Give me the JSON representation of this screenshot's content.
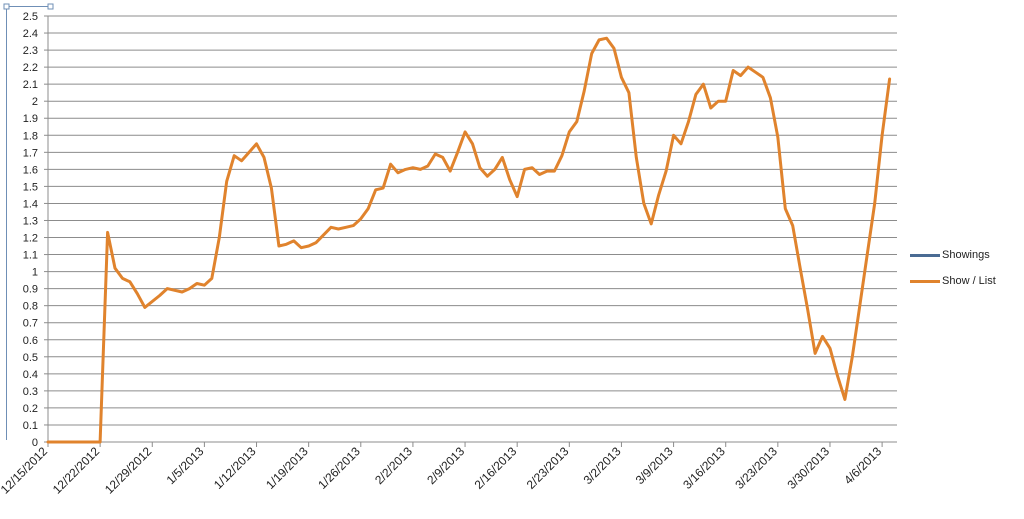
{
  "chart_data": {
    "type": "line",
    "title": "",
    "xlabel": "",
    "ylabel": "",
    "ylim": [
      0,
      2.5
    ],
    "y_ticks": [
      "0",
      "0.1",
      "0.2",
      "0.3",
      "0.4",
      "0.5",
      "0.6",
      "0.7",
      "0.8",
      "0.9",
      "1",
      "1.1",
      "1.2",
      "1.3",
      "1.4",
      "1.5",
      "1.6",
      "1.7",
      "1.8",
      "1.9",
      "2",
      "2.1",
      "2.2",
      "2.3",
      "2.4",
      "2.5"
    ],
    "x_tick_labels": [
      "12/15/2012",
      "12/22/2012",
      "12/29/2012",
      "1/5/2013",
      "1/12/2013",
      "1/19/2013",
      "1/26/2013",
      "2/2/2013",
      "2/9/2013",
      "2/16/2013",
      "2/23/2013",
      "3/2/2013",
      "3/9/2013",
      "3/16/2013",
      "3/23/2013",
      "3/30/2013",
      "4/6/2013"
    ],
    "x_range": [
      "12/15/2012",
      "4/8/2013"
    ],
    "grid": "horizontal",
    "legend_position": "right",
    "series": [
      {
        "name": "Showings",
        "color": "#4a6b93",
        "values": []
      },
      {
        "name": "Show / List",
        "color": "#e0832d",
        "x": [
          "12/15/2012",
          "12/22/2012",
          "12/23/2012",
          "12/24/2012",
          "12/25/2012",
          "12/26/2012",
          "12/27/2012",
          "12/28/2012",
          "12/30/2012",
          "12/31/2012",
          "1/2/2013",
          "1/3/2013",
          "1/4/2013",
          "1/5/2013",
          "1/6/2013",
          "1/7/2013",
          "1/8/2013",
          "1/9/2013",
          "1/10/2013",
          "1/11/2013",
          "1/12/2013",
          "1/13/2013",
          "1/14/2013",
          "1/15/2013",
          "1/16/2013",
          "1/17/2013",
          "1/18/2013",
          "1/19/2013",
          "1/20/2013",
          "1/22/2013",
          "1/23/2013",
          "1/24/2013",
          "1/25/2013",
          "1/26/2013",
          "1/27/2013",
          "1/28/2013",
          "1/29/2013",
          "1/30/2013",
          "1/31/2013",
          "2/1/2013",
          "2/2/2013",
          "2/3/2013",
          "2/4/2013",
          "2/5/2013",
          "2/6/2013",
          "2/7/2013",
          "2/8/2013",
          "2/9/2013",
          "2/10/2013",
          "2/11/2013",
          "2/12/2013",
          "2/13/2013",
          "2/14/2013",
          "2/15/2013",
          "2/16/2013",
          "2/17/2013",
          "2/18/2013",
          "2/19/2013",
          "2/20/2013",
          "2/21/2013",
          "2/22/2013",
          "2/23/2013",
          "2/24/2013",
          "2/25/2013",
          "2/26/2013",
          "2/27/2013",
          "2/28/2013",
          "3/1/2013",
          "3/2/2013",
          "3/3/2013",
          "3/4/2013",
          "3/5/2013",
          "3/6/2013",
          "3/7/2013",
          "3/8/2013",
          "3/9/2013",
          "3/10/2013",
          "3/11/2013",
          "3/12/2013",
          "3/13/2013",
          "3/14/2013",
          "3/15/2013",
          "3/16/2013",
          "3/17/2013",
          "3/18/2013",
          "3/19/2013",
          "3/20/2013",
          "3/21/2013",
          "3/22/2013",
          "3/23/2013",
          "3/24/2013",
          "3/25/2013",
          "3/26/2013",
          "3/27/2013",
          "3/28/2013",
          "3/29/2013",
          "3/30/2013",
          "3/31/2013",
          "4/1/2013",
          "4/2/2013",
          "4/3/2013",
          "4/4/2013",
          "4/5/2013",
          "4/6/2013",
          "4/7/2013"
        ],
        "values": [
          0,
          0,
          1.23,
          1.02,
          0.96,
          0.94,
          0.87,
          0.79,
          0.86,
          0.9,
          0.88,
          0.9,
          0.93,
          0.92,
          0.96,
          1.2,
          1.53,
          1.68,
          1.65,
          1.7,
          1.75,
          1.67,
          1.49,
          1.15,
          1.16,
          1.18,
          1.14,
          1.15,
          1.17,
          1.26,
          1.25,
          1.26,
          1.27,
          1.31,
          1.37,
          1.48,
          1.49,
          1.63,
          1.58,
          1.6,
          1.61,
          1.6,
          1.62,
          1.69,
          1.67,
          1.59,
          1.7,
          1.82,
          1.75,
          1.61,
          1.56,
          1.6,
          1.67,
          1.54,
          1.44,
          1.6,
          1.61,
          1.57,
          1.59,
          1.59,
          1.68,
          1.82,
          1.88,
          2.06,
          2.28,
          2.36,
          2.37,
          2.31,
          2.14,
          2.05,
          1.67,
          1.4,
          1.28,
          1.45,
          1.59,
          1.8,
          1.75,
          1.88,
          2.04,
          2.1,
          1.96,
          2.0,
          2.0,
          2.18,
          2.15,
          2.2,
          2.17,
          2.14,
          2.02,
          1.79,
          1.37,
          1.27,
          1.02,
          0.78,
          0.52,
          0.62,
          0.55,
          0.39,
          0.25,
          0.5,
          0.8,
          1.1,
          1.4,
          1.8,
          2.13
        ]
      }
    ]
  }
}
